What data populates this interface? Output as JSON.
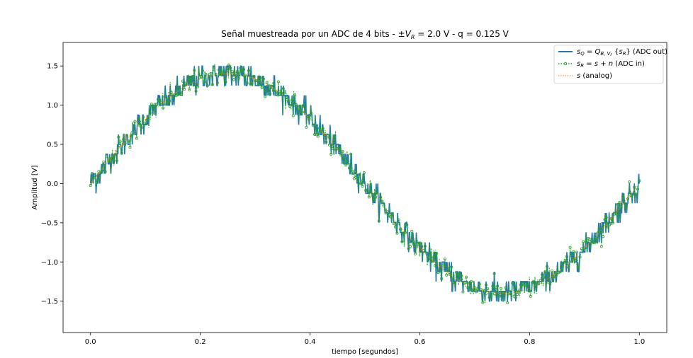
{
  "chart_data": {
    "type": "line",
    "title": "Señal muestreada por un ADC de 4 bits - ±V_R = 2.0 V - q = 0.125 V",
    "xlabel": "tiempo [segundos]",
    "ylabel": "Amplitud [V]",
    "xlim": [
      -0.05,
      1.05
    ],
    "ylim": [
      -1.9,
      1.8
    ],
    "xticks": [
      0.0,
      0.2,
      0.4,
      0.6,
      0.8,
      1.0
    ],
    "xtick_labels": [
      "0.0",
      "0.2",
      "0.4",
      "0.6",
      "0.8",
      "1.0"
    ],
    "yticks": [
      -1.5,
      -1.0,
      -0.5,
      0.0,
      0.5,
      1.0,
      1.5
    ],
    "ytick_labels": [
      "−1.5",
      "−1.0",
      "−0.5",
      "0.0",
      "0.5",
      "1.0",
      "1.5"
    ],
    "legend_position": "top-right",
    "series": [
      {
        "name_prefix": "s",
        "name_sub": "Q",
        "name_mid": " = Q",
        "name_sub2": "B, V",
        "name_sub3": "r",
        "name_arg": "(s",
        "name_arg_sub": "R",
        "name_suffix": ") (ADC out)",
        "style": "solid",
        "color": "#1f77b4",
        "role": "adc_out"
      },
      {
        "name_prefix": "s",
        "name_sub": "R",
        "name_mid": " = s + n",
        "name_suffix": "  (ADC in)",
        "style": "dotted-markers",
        "color": "#2ca02c",
        "role": "adc_in"
      },
      {
        "name_prefix": "s",
        "name_suffix": " (analog)",
        "style": "dotted",
        "color": "#ff7f0e",
        "role": "analog"
      }
    ],
    "signal": {
      "description_values": {
        "amplitude": 1.4,
        "frequency_hz": 1.0,
        "quantization_step": 0.125,
        "n_samples": 1000,
        "t_start": 0.0,
        "t_end": 1.0
      }
    }
  }
}
